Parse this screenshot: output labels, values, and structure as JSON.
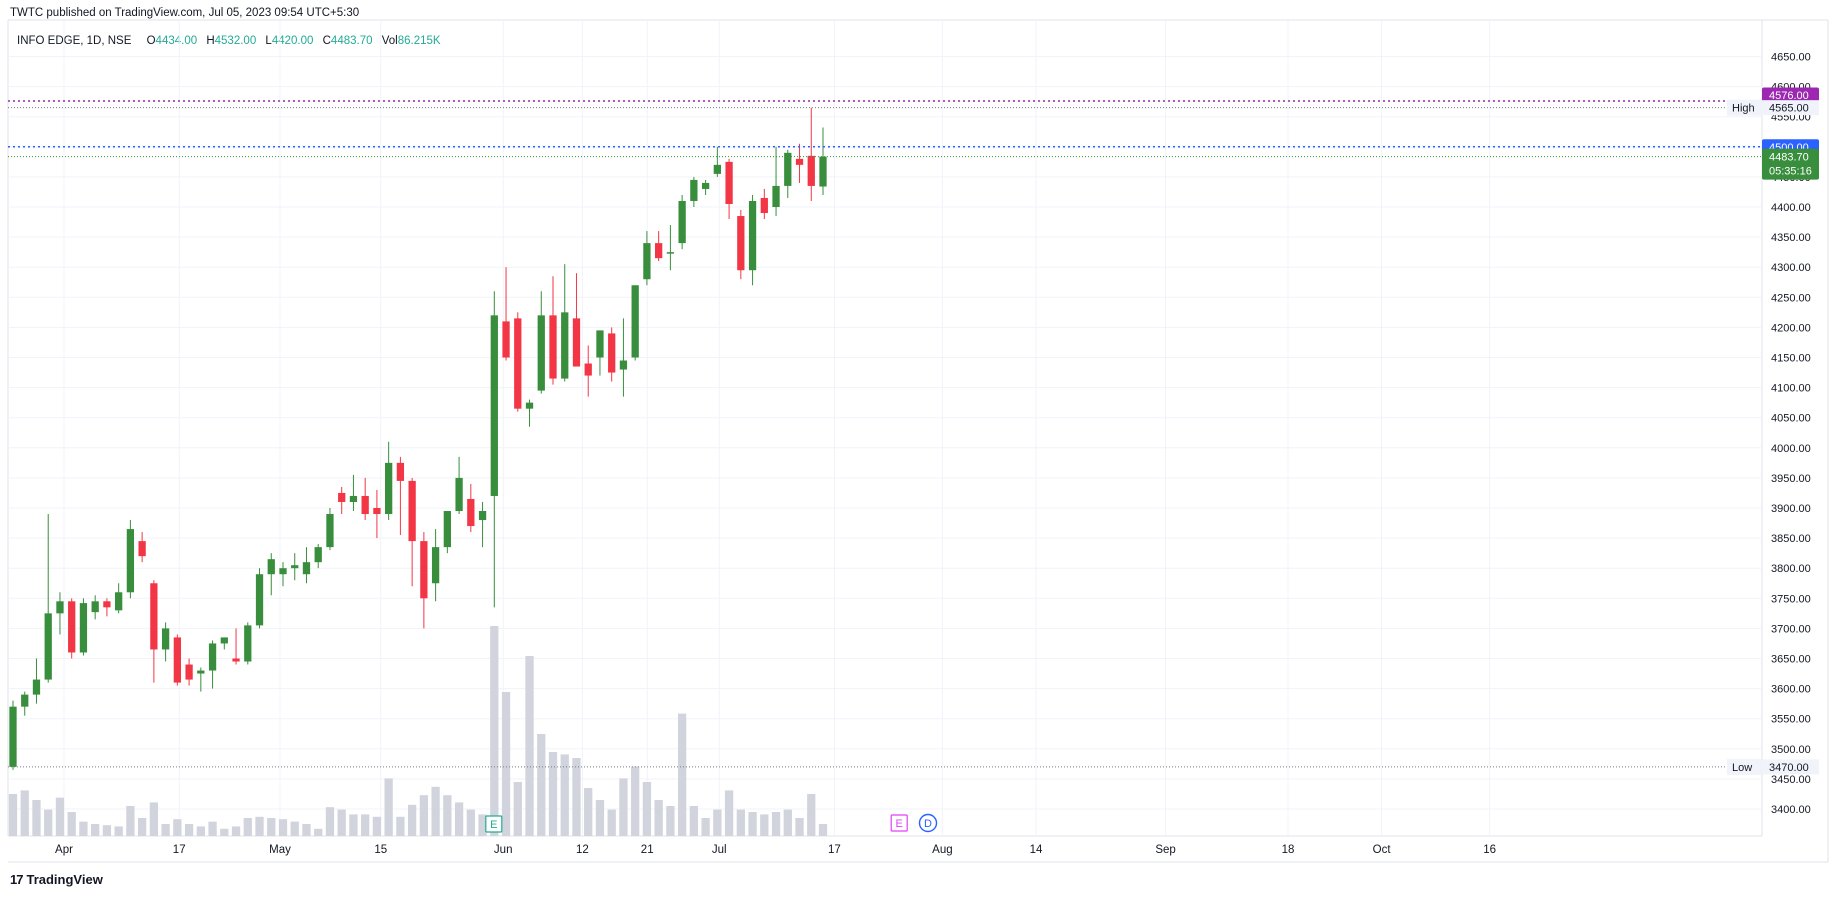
{
  "header": {
    "publisher": "TWTC published on TradingView.com, Jul 05, 2023 09:54 UTC+5:30"
  },
  "legend": {
    "symbol": "INFO EDGE, 1D, NSE",
    "open_label": "O",
    "open": "4434.00",
    "high_label": "H",
    "high": "4532.00",
    "low_label": "L",
    "low": "4420.00",
    "close_label": "C",
    "close": "4483.70",
    "vol_label": "Vol",
    "vol": "86.215K"
  },
  "price_axis": {
    "ticks": [
      "4650.00",
      "4600.00",
      "4550.00",
      "4500.00",
      "4450.00",
      "4400.00",
      "4350.00",
      "4300.00",
      "4250.00",
      "4200.00",
      "4150.00",
      "4100.00",
      "4050.00",
      "4000.00",
      "3950.00",
      "3900.00",
      "3850.00",
      "3800.00",
      "3750.00",
      "3700.00",
      "3650.00",
      "3600.00",
      "3550.00",
      "3500.00",
      "3450.00",
      "3400.00"
    ]
  },
  "markers": {
    "high_text": "High",
    "high_value": "4565.00",
    "low_text": "Low",
    "low_value": "3470.00",
    "alert_upper": "4576.00",
    "alert_lower": "4500.00",
    "last_price": "4483.70",
    "countdown": "05:35:16"
  },
  "events": {
    "earnings": "E",
    "dividend": "D"
  },
  "footer": {
    "brand": "TradingView",
    "brand_mark": "17"
  },
  "colors": {
    "up": "#388e3c",
    "down": "#f23645",
    "volume": "#d1d4dc",
    "alert_upper": "#9c27b0",
    "alert_lower": "#2962ff",
    "high_low_line": "#787b86",
    "last_price_bg": "#388e3c"
  },
  "chart_data": {
    "type": "candlestick",
    "ylim": [
      3370,
      4690
    ],
    "date_ticks": [
      {
        "label": "Apr",
        "date": "2023-04-01"
      },
      {
        "label": "17",
        "date": "2023-04-17"
      },
      {
        "label": "May",
        "date": "2023-05-01"
      },
      {
        "label": "15",
        "date": "2023-05-15"
      },
      {
        "label": "Jun",
        "date": "2023-06-01"
      },
      {
        "label": "12",
        "date": "2023-06-12"
      },
      {
        "label": "21",
        "date": "2023-06-21"
      },
      {
        "label": "Jul",
        "date": "2023-07-01"
      },
      {
        "label": "17",
        "date": "2023-07-17"
      },
      {
        "label": "Aug",
        "date": "2023-08-01"
      },
      {
        "label": "14",
        "date": "2023-08-14"
      },
      {
        "label": "Sep",
        "date": "2023-09-01"
      },
      {
        "label": "18",
        "date": "2023-09-18"
      },
      {
        "label": "Oct",
        "date": "2023-10-01"
      },
      {
        "label": "16",
        "date": "2023-10-16"
      }
    ],
    "candles": [
      {
        "date": "2023-03-28",
        "o": 3470,
        "h": 3580,
        "l": 3465,
        "c": 3570,
        "v": 35
      },
      {
        "date": "2023-03-29",
        "o": 3570,
        "h": 3595,
        "l": 3555,
        "c": 3590,
        "v": 38
      },
      {
        "date": "2023-03-31",
        "o": 3590,
        "h": 3650,
        "l": 3575,
        "c": 3615,
        "v": 30
      },
      {
        "date": "2023-04-03",
        "o": 3615,
        "h": 3890,
        "l": 3610,
        "c": 3725,
        "v": 22
      },
      {
        "date": "2023-04-05",
        "o": 3725,
        "h": 3760,
        "l": 3690,
        "c": 3745,
        "v": 32
      },
      {
        "date": "2023-04-06",
        "o": 3745,
        "h": 3750,
        "l": 3650,
        "c": 3660,
        "v": 20
      },
      {
        "date": "2023-04-10",
        "o": 3660,
        "h": 3750,
        "l": 3655,
        "c": 3742,
        "v": 12
      },
      {
        "date": "2023-04-11",
        "o": 3727,
        "h": 3755,
        "l": 3715,
        "c": 3745,
        "v": 10
      },
      {
        "date": "2023-04-12",
        "o": 3745,
        "h": 3750,
        "l": 3720,
        "c": 3735,
        "v": 9
      },
      {
        "date": "2023-04-13",
        "o": 3730,
        "h": 3775,
        "l": 3725,
        "c": 3760,
        "v": 8
      },
      {
        "date": "2023-04-14",
        "o": 3760,
        "h": 3880,
        "l": 3750,
        "c": 3865,
        "v": 25
      },
      {
        "date": "2023-04-17",
        "o": 3845,
        "h": 3860,
        "l": 3810,
        "c": 3820,
        "v": 15
      },
      {
        "date": "2023-04-18",
        "o": 3775,
        "h": 3780,
        "l": 3610,
        "c": 3665,
        "v": 28
      },
      {
        "date": "2023-04-19",
        "o": 3665,
        "h": 3710,
        "l": 3645,
        "c": 3700,
        "v": 10
      },
      {
        "date": "2023-04-20",
        "o": 3685,
        "h": 3690,
        "l": 3605,
        "c": 3610,
        "v": 14
      },
      {
        "date": "2023-04-21",
        "o": 3640,
        "h": 3650,
        "l": 3605,
        "c": 3615,
        "v": 10
      },
      {
        "date": "2023-04-24",
        "o": 3625,
        "h": 3635,
        "l": 3595,
        "c": 3630,
        "v": 8
      },
      {
        "date": "2023-04-25",
        "o": 3630,
        "h": 3680,
        "l": 3600,
        "c": 3675,
        "v": 12
      },
      {
        "date": "2023-04-26",
        "o": 3675,
        "h": 3685,
        "l": 3665,
        "c": 3685,
        "v": 6
      },
      {
        "date": "2023-04-27",
        "o": 3650,
        "h": 3700,
        "l": 3640,
        "c": 3645,
        "v": 8
      },
      {
        "date": "2023-04-28",
        "o": 3645,
        "h": 3710,
        "l": 3640,
        "c": 3705,
        "v": 15
      },
      {
        "date": "2023-05-02",
        "o": 3705,
        "h": 3800,
        "l": 3700,
        "c": 3790,
        "v": 16
      },
      {
        "date": "2023-05-03",
        "o": 3790,
        "h": 3825,
        "l": 3755,
        "c": 3815,
        "v": 15
      },
      {
        "date": "2023-05-04",
        "o": 3790,
        "h": 3810,
        "l": 3770,
        "c": 3800,
        "v": 14
      },
      {
        "date": "2023-05-05",
        "o": 3800,
        "h": 3825,
        "l": 3780,
        "c": 3805,
        "v": 12
      },
      {
        "date": "2023-05-08",
        "o": 3790,
        "h": 3835,
        "l": 3775,
        "c": 3810,
        "v": 10
      },
      {
        "date": "2023-05-09",
        "o": 3810,
        "h": 3840,
        "l": 3800,
        "c": 3835,
        "v": 6
      },
      {
        "date": "2023-05-10",
        "o": 3835,
        "h": 3900,
        "l": 3830,
        "c": 3890,
        "v": 24
      },
      {
        "date": "2023-05-11",
        "o": 3925,
        "h": 3935,
        "l": 3890,
        "c": 3910,
        "v": 22
      },
      {
        "date": "2023-05-12",
        "o": 3910,
        "h": 3955,
        "l": 3895,
        "c": 3920,
        "v": 18
      },
      {
        "date": "2023-05-15",
        "o": 3920,
        "h": 3950,
        "l": 3880,
        "c": 3890,
        "v": 18
      },
      {
        "date": "2023-05-16",
        "o": 3900,
        "h": 3930,
        "l": 3850,
        "c": 3890,
        "v": 16
      },
      {
        "date": "2023-05-17",
        "o": 3890,
        "h": 4010,
        "l": 3880,
        "c": 3975,
        "v": 48
      },
      {
        "date": "2023-05-18",
        "o": 3975,
        "h": 3985,
        "l": 3855,
        "c": 3945,
        "v": 16
      },
      {
        "date": "2023-05-19",
        "o": 3945,
        "h": 3950,
        "l": 3770,
        "c": 3845,
        "v": 26
      },
      {
        "date": "2023-05-22",
        "o": 3845,
        "h": 3860,
        "l": 3700,
        "c": 3750,
        "v": 34
      },
      {
        "date": "2023-05-23",
        "o": 3775,
        "h": 3865,
        "l": 3745,
        "c": 3835,
        "v": 41
      },
      {
        "date": "2023-05-24",
        "o": 3835,
        "h": 3895,
        "l": 3825,
        "c": 3895,
        "v": 34
      },
      {
        "date": "2023-05-25",
        "o": 3895,
        "h": 3985,
        "l": 3890,
        "c": 3950,
        "v": 28
      },
      {
        "date": "2023-05-26",
        "o": 3915,
        "h": 3940,
        "l": 3860,
        "c": 3870,
        "v": 22
      },
      {
        "date": "2023-05-29",
        "o": 3880,
        "h": 3910,
        "l": 3835,
        "c": 3895,
        "v": 18
      },
      {
        "date": "2023-05-30",
        "o": 3920,
        "h": 4260,
        "l": 3735,
        "c": 4220,
        "v": 175
      },
      {
        "date": "2023-05-31",
        "o": 4210,
        "h": 4300,
        "l": 4145,
        "c": 4150,
        "v": 120
      },
      {
        "date": "2023-06-01",
        "o": 4215,
        "h": 4225,
        "l": 4060,
        "c": 4065,
        "v": 45
      },
      {
        "date": "2023-06-02",
        "o": 4065,
        "h": 4080,
        "l": 4035,
        "c": 4075,
        "v": 150
      },
      {
        "date": "2023-06-05",
        "o": 4095,
        "h": 4260,
        "l": 4090,
        "c": 4220,
        "v": 85
      },
      {
        "date": "2023-06-06",
        "o": 4220,
        "h": 4285,
        "l": 4105,
        "c": 4115,
        "v": 70
      },
      {
        "date": "2023-06-07",
        "o": 4115,
        "h": 4305,
        "l": 4110,
        "c": 4225,
        "v": 68
      },
      {
        "date": "2023-06-08",
        "o": 4215,
        "h": 4290,
        "l": 4140,
        "c": 4135,
        "v": 65
      },
      {
        "date": "2023-06-09",
        "o": 4140,
        "h": 4170,
        "l": 4085,
        "c": 4120,
        "v": 40
      },
      {
        "date": "2023-06-12",
        "o": 4150,
        "h": 4195,
        "l": 4120,
        "c": 4195,
        "v": 30
      },
      {
        "date": "2023-06-13",
        "o": 4190,
        "h": 4200,
        "l": 4110,
        "c": 4125,
        "v": 22
      },
      {
        "date": "2023-06-14",
        "o": 4130,
        "h": 4215,
        "l": 4085,
        "c": 4145,
        "v": 48
      },
      {
        "date": "2023-06-15",
        "o": 4150,
        "h": 4270,
        "l": 4145,
        "c": 4270,
        "v": 58
      },
      {
        "date": "2023-06-16",
        "o": 4280,
        "h": 4360,
        "l": 4270,
        "c": 4340,
        "v": 45
      },
      {
        "date": "2023-06-19",
        "o": 4340,
        "h": 4360,
        "l": 4310,
        "c": 4315,
        "v": 30
      },
      {
        "date": "2023-06-20",
        "o": 4325,
        "h": 4370,
        "l": 4295,
        "c": 4325,
        "v": 25
      },
      {
        "date": "2023-06-21",
        "o": 4340,
        "h": 4420,
        "l": 4330,
        "c": 4410,
        "v": 102
      },
      {
        "date": "2023-06-22",
        "o": 4410,
        "h": 4450,
        "l": 4400,
        "c": 4445,
        "v": 25
      },
      {
        "date": "2023-06-23",
        "o": 4430,
        "h": 4445,
        "l": 4420,
        "c": 4440,
        "v": 15
      },
      {
        "date": "2023-06-26",
        "o": 4455,
        "h": 4500,
        "l": 4450,
        "c": 4470,
        "v": 22
      },
      {
        "date": "2023-06-27",
        "o": 4475,
        "h": 4480,
        "l": 4380,
        "c": 4405,
        "v": 38
      },
      {
        "date": "2023-06-28",
        "o": 4385,
        "h": 4395,
        "l": 4280,
        "c": 4295,
        "v": 22
      },
      {
        "date": "2023-06-29",
        "o": 4295,
        "h": 4420,
        "l": 4270,
        "c": 4410,
        "v": 20
      },
      {
        "date": "2023-06-30",
        "o": 4415,
        "h": 4430,
        "l": 4380,
        "c": 4390,
        "v": 18
      },
      {
        "date": "2023-07-03",
        "o": 4400,
        "h": 4500,
        "l": 4385,
        "c": 4435,
        "v": 20
      },
      {
        "date": "2023-07-04",
        "o": 4435,
        "h": 4495,
        "l": 4415,
        "c": 4490,
        "v": 22
      },
      {
        "date": "2023-07-05",
        "o": 4480,
        "h": 4505,
        "l": 4440,
        "c": 4470,
        "v": 15
      },
      {
        "date": "2023-07-06",
        "o": 4485,
        "h": 4565,
        "l": 4410,
        "c": 4435,
        "v": 35
      },
      {
        "date": "2023-07-07",
        "o": 4434,
        "h": 4532,
        "l": 4420,
        "c": 4483.7,
        "v": 10
      }
    ]
  }
}
